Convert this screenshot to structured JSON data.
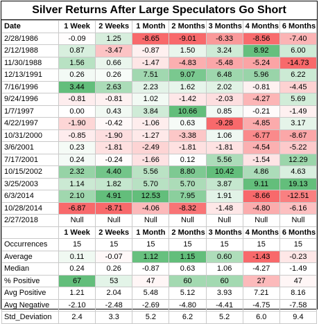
{
  "title": "Silver Returns After Large Speculators Go Short",
  "chart_data": {
    "type": "table",
    "columns": [
      "Date",
      "1 Week",
      "2 Weeks",
      "1 Month",
      "2 Months",
      "3 Months",
      "4 Months",
      "6 Months"
    ],
    "rows": [
      [
        "2/28/1986",
        "-0.09",
        "1.25",
        "-8.65",
        "-9.01",
        "-6.33",
        "-8.56",
        "-7.40"
      ],
      [
        "2/12/1988",
        "0.87",
        "-3.47",
        "-0.87",
        "1.50",
        "3.24",
        "8.92",
        "6.00"
      ],
      [
        "11/30/1988",
        "1.56",
        "0.66",
        "-1.47",
        "-4.83",
        "-5.48",
        "-5.24",
        "-14.73"
      ],
      [
        "12/13/1991",
        "0.26",
        "0.26",
        "7.51",
        "9.07",
        "6.48",
        "5.96",
        "6.22"
      ],
      [
        "7/16/1996",
        "3.44",
        "2.63",
        "2.23",
        "1.62",
        "2.02",
        "-0.81",
        "-4.45"
      ],
      [
        "9/24/1996",
        "-0.81",
        "-0.81",
        "1.02",
        "-1.42",
        "-2.03",
        "-4.27",
        "5.69"
      ],
      [
        "1/7/1997",
        "0.00",
        "0.43",
        "3.84",
        "10.66",
        "0.85",
        "-0.21",
        "-1.49"
      ],
      [
        "4/22/1997",
        "-1.90",
        "-0.42",
        "-1.06",
        "0.63",
        "-9.28",
        "-4.85",
        "3.17"
      ],
      [
        "10/31/2000",
        "-0.85",
        "-1.90",
        "-1.27",
        "-3.38",
        "1.06",
        "-6.77",
        "-8.67"
      ],
      [
        "3/6/2001",
        "0.23",
        "-1.81",
        "-2.49",
        "-1.81",
        "-1.81",
        "-4.54",
        "-5.22"
      ],
      [
        "7/17/2001",
        "0.24",
        "-0.24",
        "-1.66",
        "0.12",
        "5.56",
        "-1.54",
        "12.29"
      ],
      [
        "10/15/2002",
        "2.32",
        "4.40",
        "5.56",
        "8.80",
        "10.42",
        "4.86",
        "4.63"
      ],
      [
        "3/25/2003",
        "1.14",
        "1.82",
        "5.70",
        "5.70",
        "3.87",
        "9.11",
        "19.13"
      ],
      [
        "6/3/2014",
        "2.10",
        "4.91",
        "12.53",
        "7.95",
        "1.91",
        "-8.66",
        "-12.51"
      ],
      [
        "10/28/2014",
        "-6.87",
        "-8.71",
        "-4.06",
        "-8.32",
        "-1.48",
        "-4.80",
        "-6.16"
      ],
      [
        "2/27/2018",
        "Null",
        "Null",
        "Null",
        "Null",
        "Null",
        "Null",
        "Null"
      ]
    ],
    "stats_columns": [
      "",
      "1 Week",
      "2 Weeks",
      "1 Month",
      "2 Months",
      "3 Months",
      "4 Months",
      "6 Months"
    ],
    "stats": [
      [
        "Occurrences",
        "15",
        "15",
        "15",
        "15",
        "15",
        "15",
        "15"
      ],
      [
        "Average",
        "0.11",
        "-0.07",
        "1.12",
        "1.15",
        "0.60",
        "-1.43",
        "-0.23"
      ],
      [
        "Median",
        "0.24",
        "0.26",
        "-0.87",
        "0.63",
        "1.06",
        "-4.27",
        "-1.49"
      ],
      [
        "% Positive",
        "67",
        "53",
        "47",
        "60",
        "60",
        "27",
        "47"
      ],
      [
        "Avg Positive",
        "1.21",
        "2.04",
        "5.48",
        "5.12",
        "3.93",
        "7.21",
        "8.16"
      ],
      [
        "Avg Negative",
        "-2.10",
        "-2.48",
        "-2.69",
        "-4.80",
        "-4.41",
        "-4.75",
        "-7.58"
      ],
      [
        "Std_Deviation",
        "2.4",
        "3.3",
        "5.2",
        "6.2",
        "5.2",
        "6.0",
        "9.4"
      ]
    ],
    "heat_colors": {
      "positive": "#63be7b",
      "negative": "#f8696b",
      "neutral": "#ffffff"
    }
  }
}
